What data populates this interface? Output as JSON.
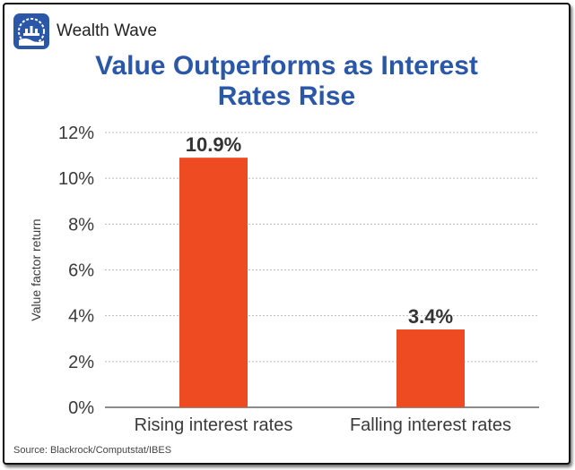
{
  "header": {
    "brand": "Wealth Wave",
    "logo_icon": "wealth-wave-logo-icon"
  },
  "footer": {
    "source": "Source: Blackrock/Computstat/IBES"
  },
  "colors": {
    "title": "#2a57a7",
    "bar": "#ef4b23",
    "logo_bg": "#2a57a7",
    "grid": "#bbbbbb",
    "text": "#3a3a3a"
  },
  "chart_data": {
    "type": "bar",
    "title_lines": [
      "Value Outperforms as Interest",
      "Rates Rise"
    ],
    "categories": [
      "Rising interest rates",
      "Falling interest rates"
    ],
    "values": [
      10.9,
      3.4
    ],
    "data_labels": [
      "10.9%",
      "3.4%"
    ],
    "xlabel": "",
    "ylabel": "Value factor return",
    "ylim": [
      0,
      12
    ],
    "yticks": [
      0,
      2,
      4,
      6,
      8,
      10,
      12
    ],
    "ytick_labels": [
      "0%",
      "2%",
      "4%",
      "6%",
      "8%",
      "10%",
      "12%"
    ],
    "grid": true,
    "legend": "none"
  }
}
